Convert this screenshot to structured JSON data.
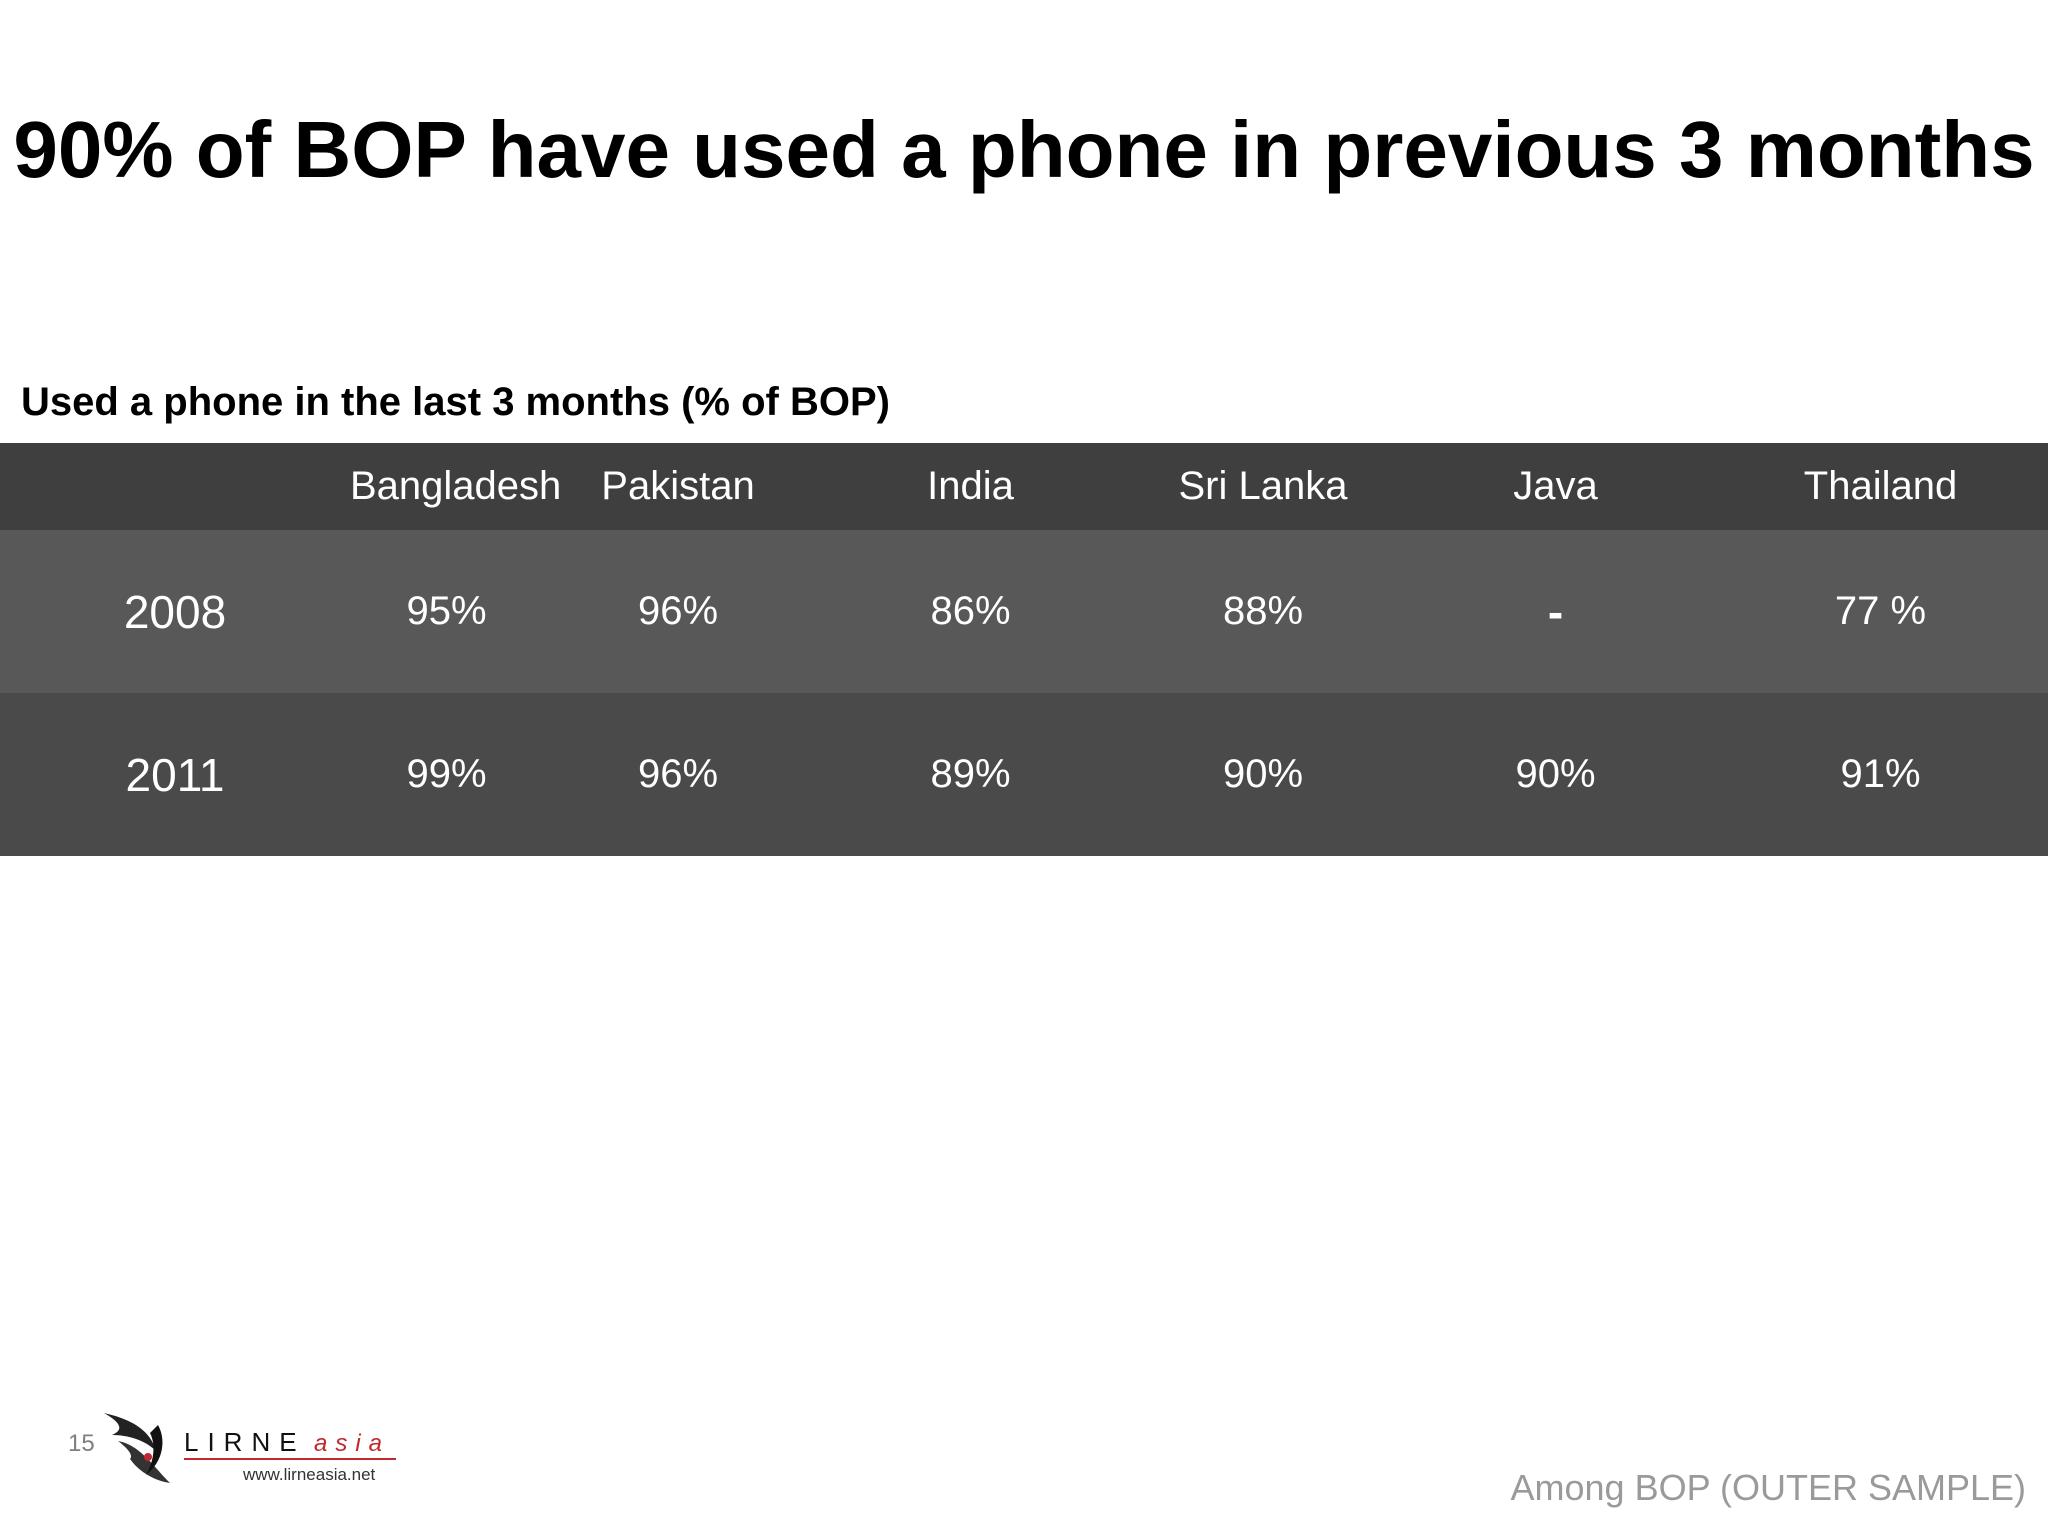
{
  "slide": {
    "title": "90% of BOP have used a phone in previous 3 months",
    "subtitle": "Used a phone in the last 3 months (% of BOP)",
    "footnote": "Among BOP (OUTER SAMPLE)",
    "page_number": "15",
    "logo": {
      "text_main": "LIRNE",
      "text_accent": "asia",
      "url": "www.lirneasia.net"
    }
  },
  "table": {
    "columns": [
      "",
      "Bangladesh",
      "Pakistan",
      "India",
      "Sri Lanka",
      "Java",
      "Thailand"
    ],
    "rows": [
      {
        "year": "2008",
        "values": [
          "95%",
          "96%",
          "86%",
          "88%",
          "-",
          "77 %"
        ]
      },
      {
        "year": "2011",
        "values": [
          "99%",
          "96%",
          "89%",
          "90%",
          "90%",
          "91%"
        ]
      }
    ]
  },
  "colors": {
    "header_bg": "#3f3f3f",
    "row1_bg": "#585858",
    "row2_bg": "#4a4a4a",
    "logo_red": "#c0282d"
  }
}
